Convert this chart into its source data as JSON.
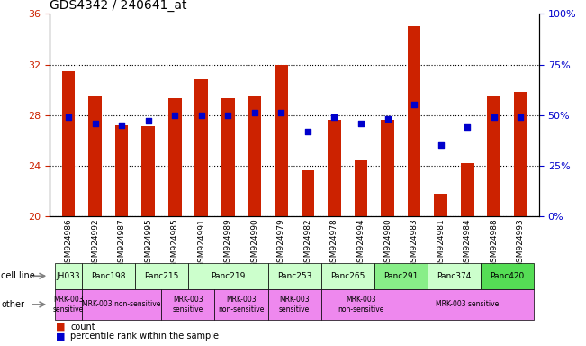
{
  "title": "GDS4342 / 240641_at",
  "samples": [
    "GSM924986",
    "GSM924992",
    "GSM924987",
    "GSM924995",
    "GSM924985",
    "GSM924991",
    "GSM924989",
    "GSM924990",
    "GSM924979",
    "GSM924982",
    "GSM924978",
    "GSM924994",
    "GSM924980",
    "GSM924983",
    "GSM924981",
    "GSM924984",
    "GSM924988",
    "GSM924993"
  ],
  "counts": [
    31.5,
    29.5,
    27.2,
    27.1,
    29.3,
    30.8,
    29.3,
    29.5,
    32.0,
    23.6,
    27.6,
    24.4,
    27.6,
    35.0,
    21.8,
    24.2,
    29.5,
    29.8
  ],
  "percentiles": [
    49,
    46,
    45,
    47,
    50,
    50,
    50,
    51,
    51,
    42,
    49,
    46,
    48,
    55,
    35,
    44,
    49,
    49
  ],
  "cell_lines": [
    {
      "name": "JH033",
      "start": 0,
      "end": 1,
      "color": "#ccffcc"
    },
    {
      "name": "Panc198",
      "start": 1,
      "end": 3,
      "color": "#ccffcc"
    },
    {
      "name": "Panc215",
      "start": 3,
      "end": 5,
      "color": "#ccffcc"
    },
    {
      "name": "Panc219",
      "start": 5,
      "end": 8,
      "color": "#ccffcc"
    },
    {
      "name": "Panc253",
      "start": 8,
      "end": 10,
      "color": "#ccffcc"
    },
    {
      "name": "Panc265",
      "start": 10,
      "end": 12,
      "color": "#ccffcc"
    },
    {
      "name": "Panc291",
      "start": 12,
      "end": 14,
      "color": "#88ee88"
    },
    {
      "name": "Panc374",
      "start": 14,
      "end": 16,
      "color": "#ccffcc"
    },
    {
      "name": "Panc420",
      "start": 16,
      "end": 18,
      "color": "#55dd55"
    }
  ],
  "other_rows": [
    {
      "label": "MRK-003\nsensitive",
      "start": 0,
      "end": 1,
      "color": "#ee88ee"
    },
    {
      "label": "MRK-003 non-sensitive",
      "start": 1,
      "end": 4,
      "color": "#ee88ee"
    },
    {
      "label": "MRK-003\nsensitive",
      "start": 4,
      "end": 6,
      "color": "#ee88ee"
    },
    {
      "label": "MRK-003\nnon-sensitive",
      "start": 6,
      "end": 8,
      "color": "#ee88ee"
    },
    {
      "label": "MRK-003\nsensitive",
      "start": 8,
      "end": 10,
      "color": "#ee88ee"
    },
    {
      "label": "MRK-003\nnon-sensitive",
      "start": 10,
      "end": 13,
      "color": "#ee88ee"
    },
    {
      "label": "MRK-003 sensitive",
      "start": 13,
      "end": 18,
      "color": "#ee88ee"
    }
  ],
  "ylim_left": [
    20,
    36
  ],
  "yticks_left": [
    20,
    24,
    28,
    32,
    36
  ],
  "ylim_right": [
    0,
    100
  ],
  "yticks_right": [
    0,
    25,
    50,
    75,
    100
  ],
  "bar_color": "#cc2200",
  "dot_color": "#0000cc",
  "bar_width": 0.5,
  "dot_size": 25,
  "tick_label_color_left": "#cc2200",
  "tick_label_color_right": "#0000cc",
  "xticklabel_bg": "#dddddd",
  "n": 18
}
